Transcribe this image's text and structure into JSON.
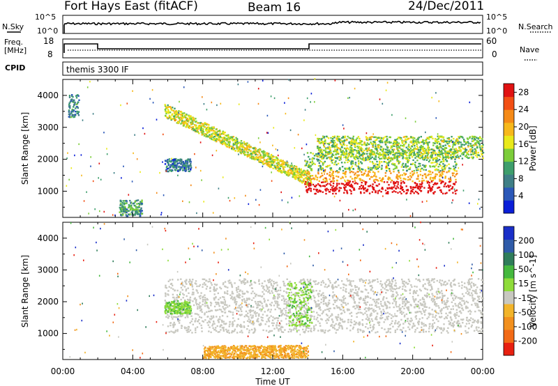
{
  "header": {
    "station": "Fort Hays East (fitACF)",
    "beam": "Beam 16",
    "date": "24/Dec/2011"
  },
  "summary_panels": {
    "nsky_label": "N.Sky",
    "nsearch_label": "N.Search",
    "freq_label_line1": "Freq.",
    "freq_label_line2": "[MHz]",
    "nave_label": "Nave",
    "cpid_label": "CPID",
    "cpid_value": "themis 3300 IF",
    "noise_ticks_left": [
      "10^5",
      "10^0"
    ],
    "noise_ticks_right": [
      "10^5",
      "10^0"
    ],
    "freq_ticks": [
      "18",
      "8"
    ],
    "nave_ticks": [
      "60",
      "0"
    ]
  },
  "chart_data": [
    {
      "type": "heatmap",
      "name": "power-panel",
      "ylabel": "Slant Range [km]",
      "xlabel": "Time UT",
      "x_ticks": [
        "00:00",
        "04:00",
        "08:00",
        "12:00",
        "16:00",
        "20:00",
        "00:00"
      ],
      "xlim_hours": [
        0,
        24
      ],
      "y_ticks": [
        1000,
        2000,
        3000,
        4000
      ],
      "ylim_km": [
        180,
        4500
      ],
      "colorbar": {
        "label": "Power [dB]",
        "ticks": [
          "4",
          "8",
          "12",
          "16",
          "20",
          "24",
          "28"
        ],
        "range": [
          0,
          30
        ],
        "colors": [
          "#0a1ed8",
          "#2b58b8",
          "#3f7f86",
          "#3e9e6c",
          "#7ccd3a",
          "#e9e91a",
          "#f7b81b",
          "#f58a17",
          "#f24f14",
          "#e01212"
        ]
      },
      "features": [
        {
          "desc": "early scatter",
          "t": [
            0.3,
            0.9
          ],
          "range_km": [
            3300,
            4000
          ],
          "level": 8
        },
        {
          "desc": "long echo band",
          "t": [
            5.8,
            14.2
          ],
          "range_km_start": [
            3300,
            4000
          ],
          "range_km_end": [
            1100,
            1800
          ],
          "level": 16
        },
        {
          "desc": "strong band",
          "t": [
            13.8,
            22.5
          ],
          "range_km": [
            900,
            2200
          ],
          "level": 26
        },
        {
          "desc": "upper band",
          "t": [
            14.5,
            24.0
          ],
          "range_km": [
            2000,
            2700
          ],
          "level": 14
        },
        {
          "desc": "near range cluster",
          "t": [
            3.2,
            4.5
          ],
          "range_km": [
            200,
            700
          ],
          "level": 10
        },
        {
          "desc": "small patch",
          "t": [
            5.8,
            7.3
          ],
          "range_km": [
            1600,
            2000
          ],
          "level": 7
        }
      ]
    },
    {
      "type": "heatmap",
      "name": "velocity-panel",
      "ylabel": "Slant Range [km]",
      "xlabel": "Time UT",
      "x_ticks": [
        "00:00",
        "04:00",
        "08:00",
        "12:00",
        "16:00",
        "20:00",
        "00:00"
      ],
      "xlim_hours": [
        0,
        24
      ],
      "y_ticks": [
        1000,
        2000,
        3000,
        4000
      ],
      "ylim_km": [
        180,
        4500
      ],
      "colorbar": {
        "label": "Velocity [m s^-1]",
        "ticks": [
          "200",
          "100",
          "50",
          "15",
          "-15",
          "-50",
          "-100",
          "-200"
        ],
        "range": [
          -250,
          250
        ],
        "colors": [
          "#1a2fc8",
          "#2f5ba8",
          "#2f7d5a",
          "#45b83e",
          "#8fdc3a",
          "#c8c8c0",
          "#f2b42a",
          "#f2901e",
          "#f26a16",
          "#e82010"
        ]
      },
      "features": [
        {
          "desc": "ground scatter main band",
          "t": [
            5.8,
            24.0
          ],
          "range_km": [
            1000,
            2700
          ],
          "velocity": 0
        },
        {
          "desc": "green streak near 13-14 UT",
          "t": [
            12.8,
            14.2
          ],
          "range_km": [
            1200,
            2600
          ],
          "velocity": 30
        },
        {
          "desc": "green patch",
          "t": [
            5.8,
            7.3
          ],
          "range_km": [
            1600,
            2000
          ],
          "velocity": 40
        },
        {
          "desc": "near range orange",
          "t": [
            8.0,
            14.0
          ],
          "range_km": [
            200,
            600
          ],
          "velocity": -60
        }
      ]
    }
  ]
}
